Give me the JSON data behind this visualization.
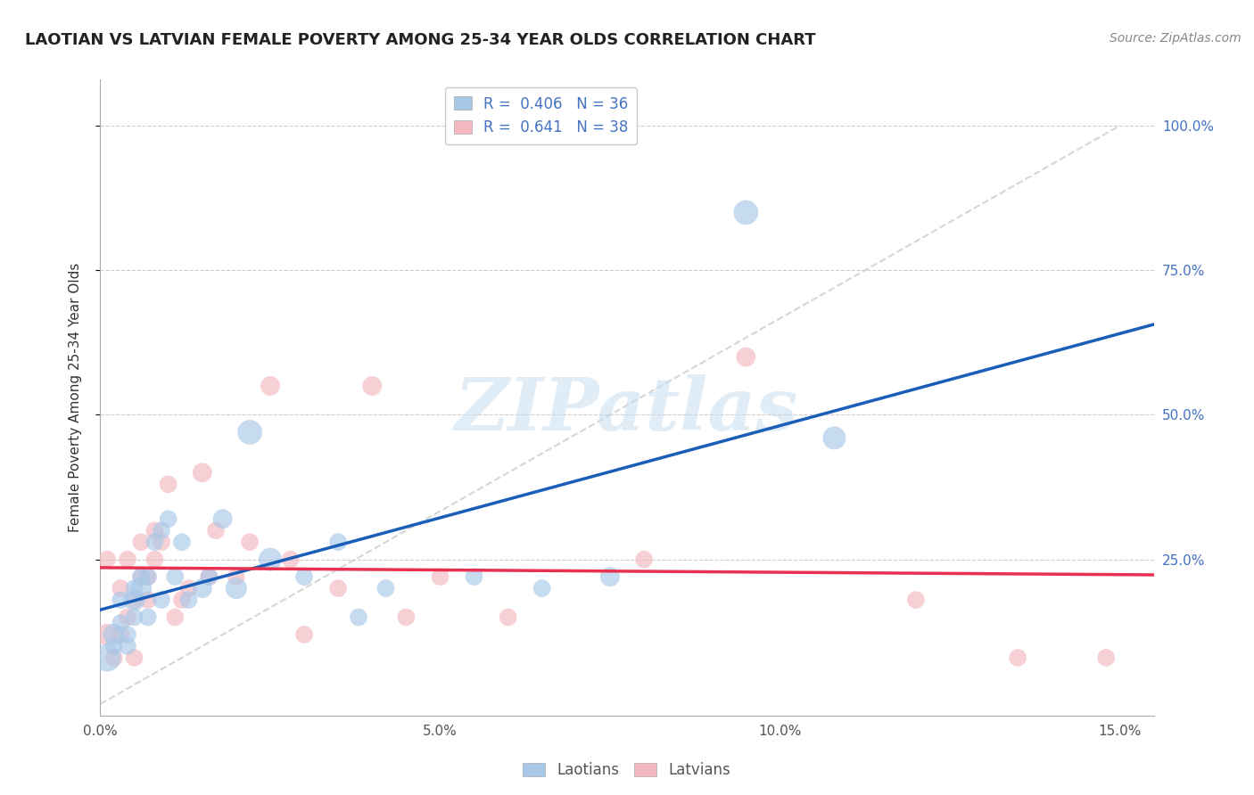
{
  "title": "LAOTIAN VS LATVIAN FEMALE POVERTY AMONG 25-34 YEAR OLDS CORRELATION CHART",
  "source": "Source: ZipAtlas.com",
  "ylabel": "Female Poverty Among 25-34 Year Olds",
  "xlim": [
    0.0,
    0.155
  ],
  "ylim": [
    -0.02,
    1.08
  ],
  "xtick_values": [
    0.0,
    0.05,
    0.1,
    0.15
  ],
  "ytick_right_values": [
    0.25,
    0.5,
    0.75,
    1.0
  ],
  "laotian_color": "#a8c8e8",
  "latvian_color": "#f4b8c0",
  "laotian_line_color": "#1a5eb8",
  "latvian_line_color": "#e83050",
  "diagonal_color": "#cccccc",
  "R_laotian": 0.406,
  "N_laotian": 36,
  "R_latvian": 0.641,
  "N_latvian": 38,
  "laotian_x": [
    0.001,
    0.002,
    0.002,
    0.003,
    0.003,
    0.004,
    0.004,
    0.005,
    0.005,
    0.005,
    0.006,
    0.006,
    0.007,
    0.007,
    0.008,
    0.009,
    0.009,
    0.01,
    0.011,
    0.012,
    0.013,
    0.015,
    0.016,
    0.018,
    0.02,
    0.022,
    0.025,
    0.03,
    0.035,
    0.038,
    0.042,
    0.055,
    0.065,
    0.075,
    0.095,
    0.108
  ],
  "laotian_y": [
    0.08,
    0.12,
    0.1,
    0.14,
    0.18,
    0.12,
    0.1,
    0.15,
    0.18,
    0.2,
    0.2,
    0.22,
    0.15,
    0.22,
    0.28,
    0.18,
    0.3,
    0.32,
    0.22,
    0.28,
    0.18,
    0.2,
    0.22,
    0.32,
    0.2,
    0.47,
    0.25,
    0.22,
    0.28,
    0.15,
    0.2,
    0.22,
    0.2,
    0.22,
    0.85,
    0.46
  ],
  "laotian_sizes": [
    500,
    300,
    200,
    200,
    200,
    200,
    200,
    200,
    300,
    200,
    300,
    200,
    200,
    200,
    200,
    200,
    200,
    200,
    200,
    200,
    200,
    250,
    200,
    250,
    300,
    400,
    350,
    200,
    200,
    200,
    200,
    200,
    200,
    250,
    400,
    350
  ],
  "latvian_x": [
    0.001,
    0.001,
    0.002,
    0.003,
    0.003,
    0.004,
    0.004,
    0.005,
    0.005,
    0.006,
    0.006,
    0.007,
    0.007,
    0.008,
    0.008,
    0.009,
    0.01,
    0.011,
    0.012,
    0.013,
    0.015,
    0.016,
    0.017,
    0.02,
    0.022,
    0.025,
    0.028,
    0.03,
    0.035,
    0.04,
    0.045,
    0.05,
    0.06,
    0.08,
    0.095,
    0.12,
    0.135,
    0.148
  ],
  "latvian_y": [
    0.12,
    0.25,
    0.08,
    0.12,
    0.2,
    0.15,
    0.25,
    0.18,
    0.08,
    0.28,
    0.22,
    0.18,
    0.22,
    0.3,
    0.25,
    0.28,
    0.38,
    0.15,
    0.18,
    0.2,
    0.4,
    0.22,
    0.3,
    0.22,
    0.28,
    0.55,
    0.25,
    0.12,
    0.2,
    0.55,
    0.15,
    0.22,
    0.15,
    0.25,
    0.6,
    0.18,
    0.08,
    0.08
  ],
  "latvian_sizes": [
    300,
    200,
    200,
    200,
    200,
    200,
    200,
    200,
    200,
    200,
    200,
    200,
    200,
    200,
    200,
    200,
    200,
    200,
    200,
    200,
    250,
    200,
    200,
    200,
    200,
    250,
    200,
    200,
    200,
    250,
    200,
    200,
    200,
    200,
    250,
    200,
    200,
    200
  ],
  "watermark_text": "ZIPatlas",
  "background_color": "#ffffff",
  "grid_color": "#cccccc"
}
